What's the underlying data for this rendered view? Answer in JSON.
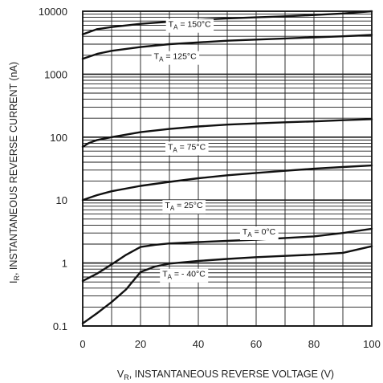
{
  "chart_data": {
    "type": "line",
    "title": "",
    "xlabel": {
      "main": "V",
      "sub": "R",
      "rest": ", INSTANTANEOUS REVERSE VOLTAGE (V)"
    },
    "ylabel": {
      "main": "I",
      "sub": "R",
      "rest": ", INSTANTANEOUS REVERSE CURRENT (nA)"
    },
    "xlim": [
      0,
      100
    ],
    "ylim": [
      0.1,
      10000
    ],
    "yscale": "log",
    "grid": true,
    "x_ticks": [
      0,
      20,
      40,
      60,
      80,
      100
    ],
    "x_tick_labels": [
      "0",
      "20",
      "40",
      "60",
      "80",
      "100"
    ],
    "y_ticks": [
      0.1,
      1,
      10,
      100,
      1000,
      10000
    ],
    "y_tick_labels": [
      "0.1",
      "1",
      "10",
      "100",
      "1000",
      "10000"
    ],
    "series": [
      {
        "name": "150°C",
        "x": [
          0,
          5,
          10,
          20,
          30,
          40,
          50,
          60,
          70,
          80,
          90,
          100
        ],
        "y": [
          4300,
          5200,
          5600,
          6300,
          6800,
          7300,
          7700,
          8000,
          8300,
          8700,
          9200,
          10000
        ]
      },
      {
        "name": "125°C",
        "x": [
          0,
          5,
          10,
          20,
          30,
          40,
          50,
          60,
          70,
          80,
          90,
          100
        ],
        "y": [
          1750,
          2100,
          2350,
          2700,
          3000,
          3200,
          3400,
          3550,
          3700,
          3850,
          4000,
          4200
        ]
      },
      {
        "name": "75°C",
        "x": [
          0,
          2,
          5,
          10,
          20,
          30,
          40,
          50,
          60,
          70,
          80,
          90,
          100
        ],
        "y": [
          70,
          80,
          90,
          100,
          120,
          135,
          148,
          158,
          165,
          172,
          178,
          186,
          193
        ]
      },
      {
        "name": "25°C",
        "x": [
          0,
          2,
          5,
          10,
          20,
          30,
          40,
          50,
          60,
          70,
          80,
          90,
          100
        ],
        "y": [
          10,
          10.8,
          12,
          13.8,
          16.8,
          19.5,
          22.2,
          24.8,
          27,
          29.2,
          31.5,
          33.5,
          35.5
        ]
      },
      {
        "name": "0°C",
        "x": [
          0,
          5,
          10,
          15,
          20,
          25,
          30,
          40,
          50,
          60,
          70,
          80,
          90,
          100
        ],
        "y": [
          0.52,
          0.68,
          0.95,
          1.35,
          1.8,
          1.95,
          2.05,
          2.15,
          2.25,
          2.35,
          2.5,
          2.65,
          3.0,
          3.5
        ]
      },
      {
        "name": "-40°C",
        "x": [
          0,
          5,
          10,
          15,
          20,
          25,
          30,
          40,
          50,
          60,
          70,
          80,
          90,
          100
        ],
        "y": [
          0.11,
          0.16,
          0.24,
          0.38,
          0.72,
          0.88,
          0.98,
          1.08,
          1.16,
          1.24,
          1.3,
          1.36,
          1.45,
          1.85
        ]
      }
    ],
    "series_labels": [
      {
        "series": "150°C",
        "prefix": "T",
        "sub": "A",
        "text": " = 150°C",
        "x": 37,
        "y": 6300
      },
      {
        "series": "125°C",
        "prefix": "T",
        "sub": "A",
        "text": " = 125°C",
        "x": 32,
        "y": 1950
      },
      {
        "series": "75°C",
        "prefix": "T",
        "sub": "A",
        "text": " = 75°C",
        "x": 36,
        "y": 71
      },
      {
        "series": "25°C",
        "prefix": "T",
        "sub": "A",
        "text": " = 25°C",
        "x": 35,
        "y": 8.4
      },
      {
        "series": "0°C",
        "prefix": "T",
        "sub": "A",
        "text": " = 0°C",
        "x": 61,
        "y": 3.2
      },
      {
        "series": "-40°C",
        "prefix": "T",
        "sub": "A",
        "text": " = - 40°C",
        "x": 35,
        "y": 0.68
      }
    ],
    "colors": {
      "line": "#111111",
      "grid": "#1a1a1a",
      "frame": "#111111",
      "label_bg": "#ffffff"
    }
  }
}
